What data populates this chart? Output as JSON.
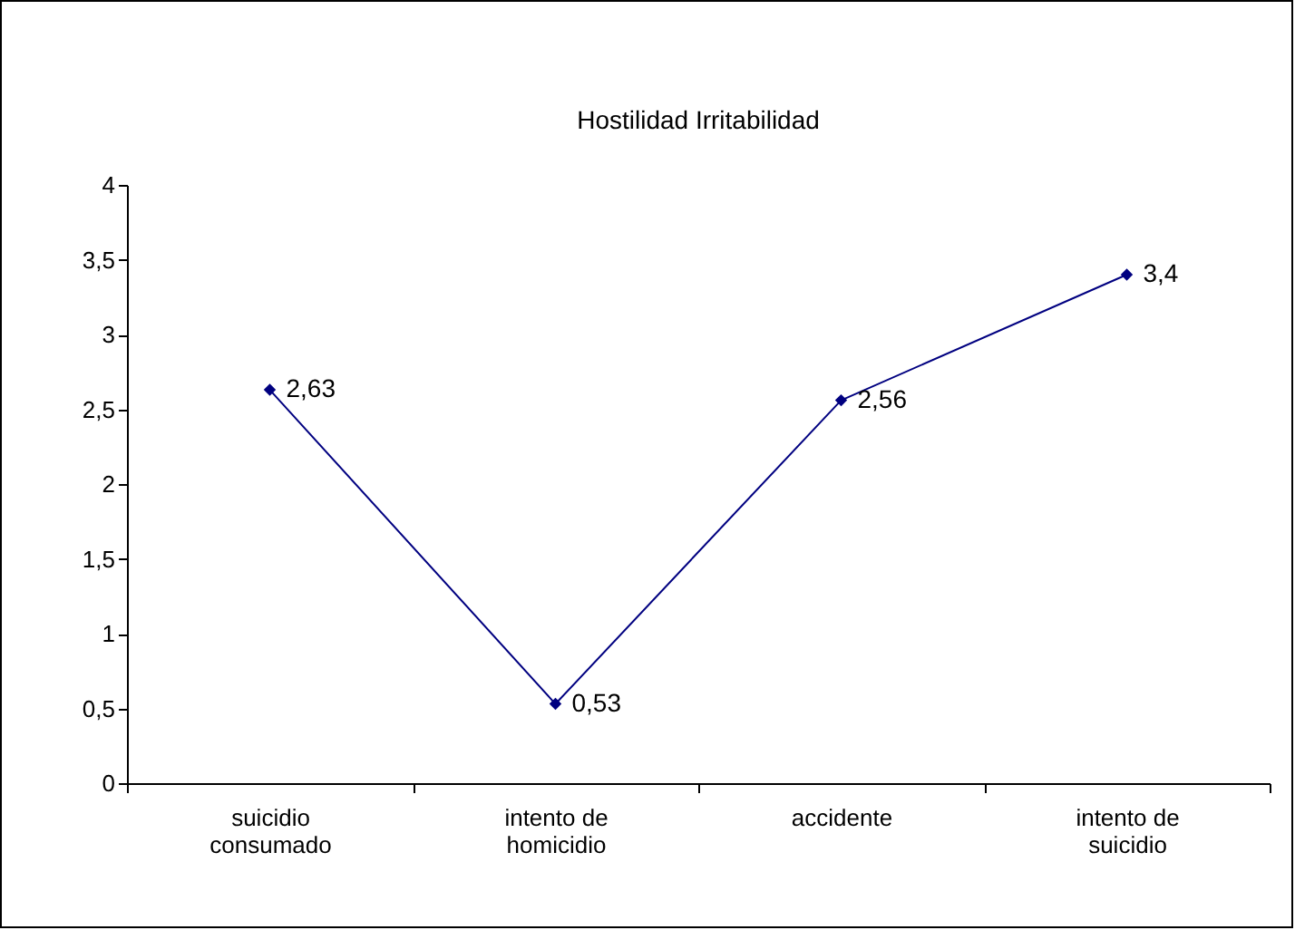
{
  "chart_data": {
    "type": "line",
    "title": "Hostilidad Irritabilidad",
    "categories": [
      "suicidio consumado",
      "intento de homicidio",
      "accidente",
      "intento de suicidio"
    ],
    "series": [
      {
        "color": "#000080",
        "values": [
          2.63,
          0.53,
          2.56,
          3.4
        ],
        "value_labels": [
          "2,63",
          "0,53",
          "2,56",
          "3,4"
        ]
      }
    ],
    "ylim": [
      0,
      4
    ],
    "yticks": [
      0,
      {
        "value": 0.5,
        "label": "0,5"
      },
      1,
      {
        "value": 1.5,
        "label": "1,5"
      },
      2,
      {
        "value": 2.5,
        "label": "2,5"
      },
      3,
      {
        "value": 3.5,
        "label": "3,5"
      },
      4
    ],
    "grid": false,
    "marker": "diamond",
    "line_style": "solid"
  }
}
